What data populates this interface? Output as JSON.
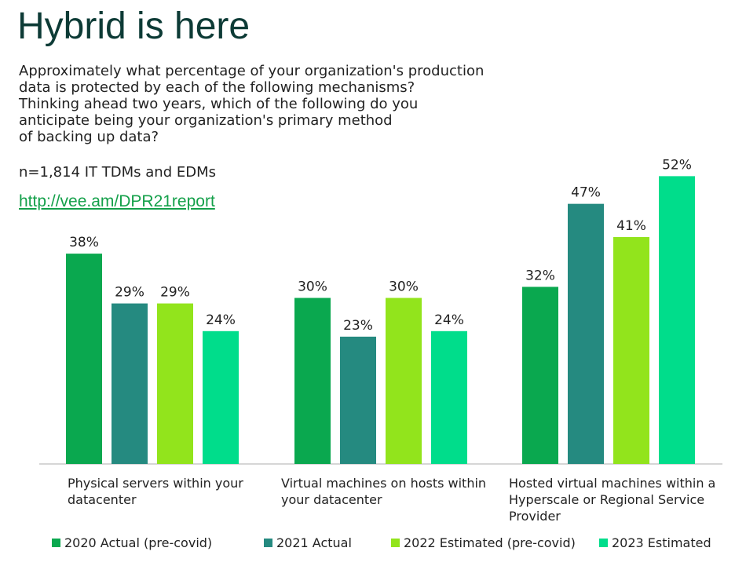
{
  "title": "Hybrid is here",
  "question_lines": [
    "Approximately what percentage of your organization's production",
    "data is protected by each of the following mechanisms?",
    "Thinking ahead two years, which of the following do you",
    "anticipate being your organization's primary method",
    "of backing up data?"
  ],
  "sample": "n=1,814 IT TDMs and EDMs",
  "link": "http://vee.am/DPR21report",
  "chart_data": {
    "type": "bar",
    "categories": [
      "Physical servers within your datacenter",
      "Virtual machines on hosts within your datacenter",
      "Hosted virtual machines within a Hyperscale or Regional Service Provider"
    ],
    "category_lines": [
      [
        "Physical servers within your",
        "datacenter"
      ],
      [
        "Virtual machines on hosts within",
        "your datacenter"
      ],
      [
        "Hosted virtual machines within a",
        "Hyperscale or Regional Service",
        "Provider"
      ]
    ],
    "series": [
      {
        "name": "2020 Actual (pre-covid)",
        "color": "#0aa84f",
        "values": [
          38,
          30,
          32
        ],
        "labels": [
          "38%",
          "30%",
          "32%"
        ]
      },
      {
        "name": "2021 Actual",
        "color": "#258a80",
        "values": [
          29,
          23,
          47
        ],
        "labels": [
          "29%",
          "23%",
          "47%"
        ]
      },
      {
        "name": "2022 Estimated (pre-covid)",
        "color": "#92e41c",
        "values": [
          29,
          30,
          41
        ],
        "labels": [
          "29%",
          "30%",
          "41%"
        ]
      },
      {
        "name": "2023 Estimated",
        "color": "#00dd8b",
        "values": [
          24,
          24,
          52
        ],
        "labels": [
          "24%",
          "24%",
          "52%"
        ]
      }
    ],
    "ylim": [
      0,
      55
    ],
    "grid": false,
    "legend_position": "bottom"
  }
}
